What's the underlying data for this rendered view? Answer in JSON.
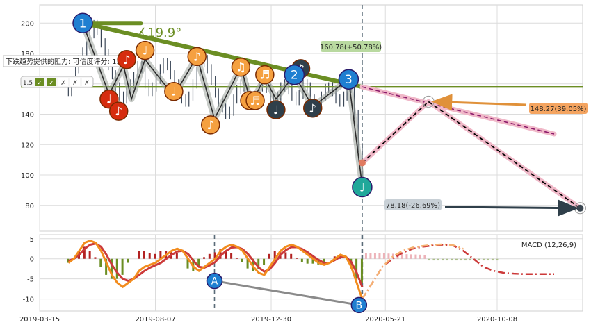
{
  "chart_data": [
    {
      "type": "line",
      "panel": "price",
      "y_ticks": [
        80,
        100,
        120,
        140,
        160,
        180,
        200
      ],
      "ylim": [
        63,
        212
      ],
      "grid": true,
      "candles_close": [
        155,
        162,
        170,
        176,
        181,
        185,
        193,
        199,
        195,
        187,
        180,
        172,
        166,
        158,
        152,
        150,
        155,
        160,
        165,
        172,
        170,
        160,
        155,
        158,
        163,
        170,
        174,
        172,
        166,
        160,
        155,
        150,
        148,
        152,
        160,
        168,
        174,
        176,
        170,
        162,
        154,
        148,
        144,
        140,
        142,
        150,
        156,
        160,
        158,
        152,
        148,
        151,
        158,
        162,
        157,
        150,
        147,
        152,
        158,
        160,
        156,
        152,
        149,
        153,
        160,
        158,
        150,
        144,
        146,
        152,
        157,
        158,
        155,
        150,
        148,
        152,
        158,
        157,
        140,
        118,
        100
      ],
      "candle_dates": [
        "2019-04-20",
        "2020-04-22"
      ],
      "trendline": {
        "label": "∡19.9°",
        "color": "#6b8e23"
      },
      "support": {
        "value": 158,
        "color": "#6b8e23"
      },
      "resistance_note": "下跌趋势提供的阻力: 可信度评分: 1.5",
      "score_badges": [
        "1.5",
        "✓",
        "✓",
        "✗",
        "✗",
        "✗"
      ],
      "wave_points": [
        {
          "label": "1",
          "date": "2019-05-08",
          "value": 200
        },
        {
          "label": "2",
          "date": "2020-01-28",
          "value": 166
        },
        {
          "label": "3",
          "date": "2020-04-05",
          "value": 163
        },
        {
          "label": "♩",
          "date": "2020-04-22",
          "value": 92
        }
      ],
      "projections": [
        {
          "label": "160.78(+50.78%)",
          "value": 160.78,
          "color": "#b9d9a0"
        },
        {
          "label": "148.27(39.05%)",
          "value": 148.27,
          "date": "2020-07-14",
          "color": "#f4a460"
        },
        {
          "label": "78.18(-26.69%)",
          "value": 78.18,
          "date": "2021-01-20",
          "color": "#c8d0d6"
        }
      ],
      "vlines": [
        "2020-04-22"
      ]
    },
    {
      "type": "line",
      "panel": "macd",
      "title": "MACD (12,26,9)",
      "y_ticks": [
        5,
        0,
        -5,
        -10
      ],
      "ylim": [
        -13,
        6
      ],
      "macd": [
        -1,
        0,
        2,
        4,
        4.5,
        4,
        2,
        -1,
        -4,
        -6,
        -7,
        -6,
        -5,
        -3,
        -2,
        -1.5,
        -1,
        0,
        1,
        2,
        2.5,
        2,
        0,
        -2,
        -3,
        -2,
        -1,
        0,
        2,
        3,
        3.5,
        3,
        2,
        0,
        -2,
        -3.5,
        -4,
        -2,
        0,
        2,
        3,
        3.5,
        3,
        2,
        1,
        0,
        -1,
        -1.5,
        -1,
        0,
        1,
        0.5,
        -2,
        -6,
        -10
      ],
      "signal": [
        -0.5,
        0,
        1,
        2.5,
        3.5,
        3.8,
        3,
        1,
        -1.5,
        -3.5,
        -5,
        -5.5,
        -5,
        -4,
        -3,
        -2.2,
        -1.6,
        -1,
        0,
        1,
        1.8,
        2,
        1.2,
        -0.5,
        -2,
        -2.2,
        -1.6,
        -0.8,
        0.8,
        2,
        2.8,
        2.9,
        2.4,
        1.2,
        -0.5,
        -2.2,
        -3.2,
        -2.6,
        -1,
        1,
        2.2,
        2.9,
        2.9,
        2.4,
        1.6,
        0.6,
        -0.3,
        -1,
        -1,
        -0.3,
        0.5,
        0.5,
        -0.8,
        -3.5,
        -7
      ],
      "projection_signal": [
        -10,
        -6,
        -2,
        0,
        1.5,
        2.5,
        3,
        3.3,
        3.5,
        3.3,
        2,
        0,
        -2,
        -3,
        -3.5,
        -3.7,
        -3.8,
        -3.8,
        -3.8,
        -3.8
      ],
      "projection_macd": [
        -10,
        -6,
        -2,
        0.5,
        2,
        2.8,
        3.2,
        3.5,
        3.6,
        3.4,
        2.5,
        1,
        0,
        0,
        0,
        0,
        0,
        0,
        0,
        0
      ],
      "divergence": [
        {
          "label": "A",
          "date": "2019-10-20",
          "value": -5.5
        },
        {
          "label": "B",
          "date": "2020-04-18",
          "value": -11.5
        }
      ],
      "vlines": [
        "2019-10-20",
        "2020-04-22"
      ]
    }
  ],
  "x_ticks": [
    "2019-03-15",
    "2019-08-07",
    "2019-12-30",
    "2020-05-21",
    "2020-10-08"
  ],
  "colors": {
    "trend": "#6b8e23",
    "wave_red": "#d62d0f",
    "wave_orange": "#f5a040",
    "wave_dark": "#2f3f4a",
    "wave_blue": "#1f7fd1",
    "wave_teal": "#20a89a",
    "proj_pink": "#f0b8c8",
    "macd_red": "#cc3a3a",
    "macd_orange": "#f28c1e",
    "hist_green": "#6b8e23",
    "hist_red": "#b22222"
  }
}
